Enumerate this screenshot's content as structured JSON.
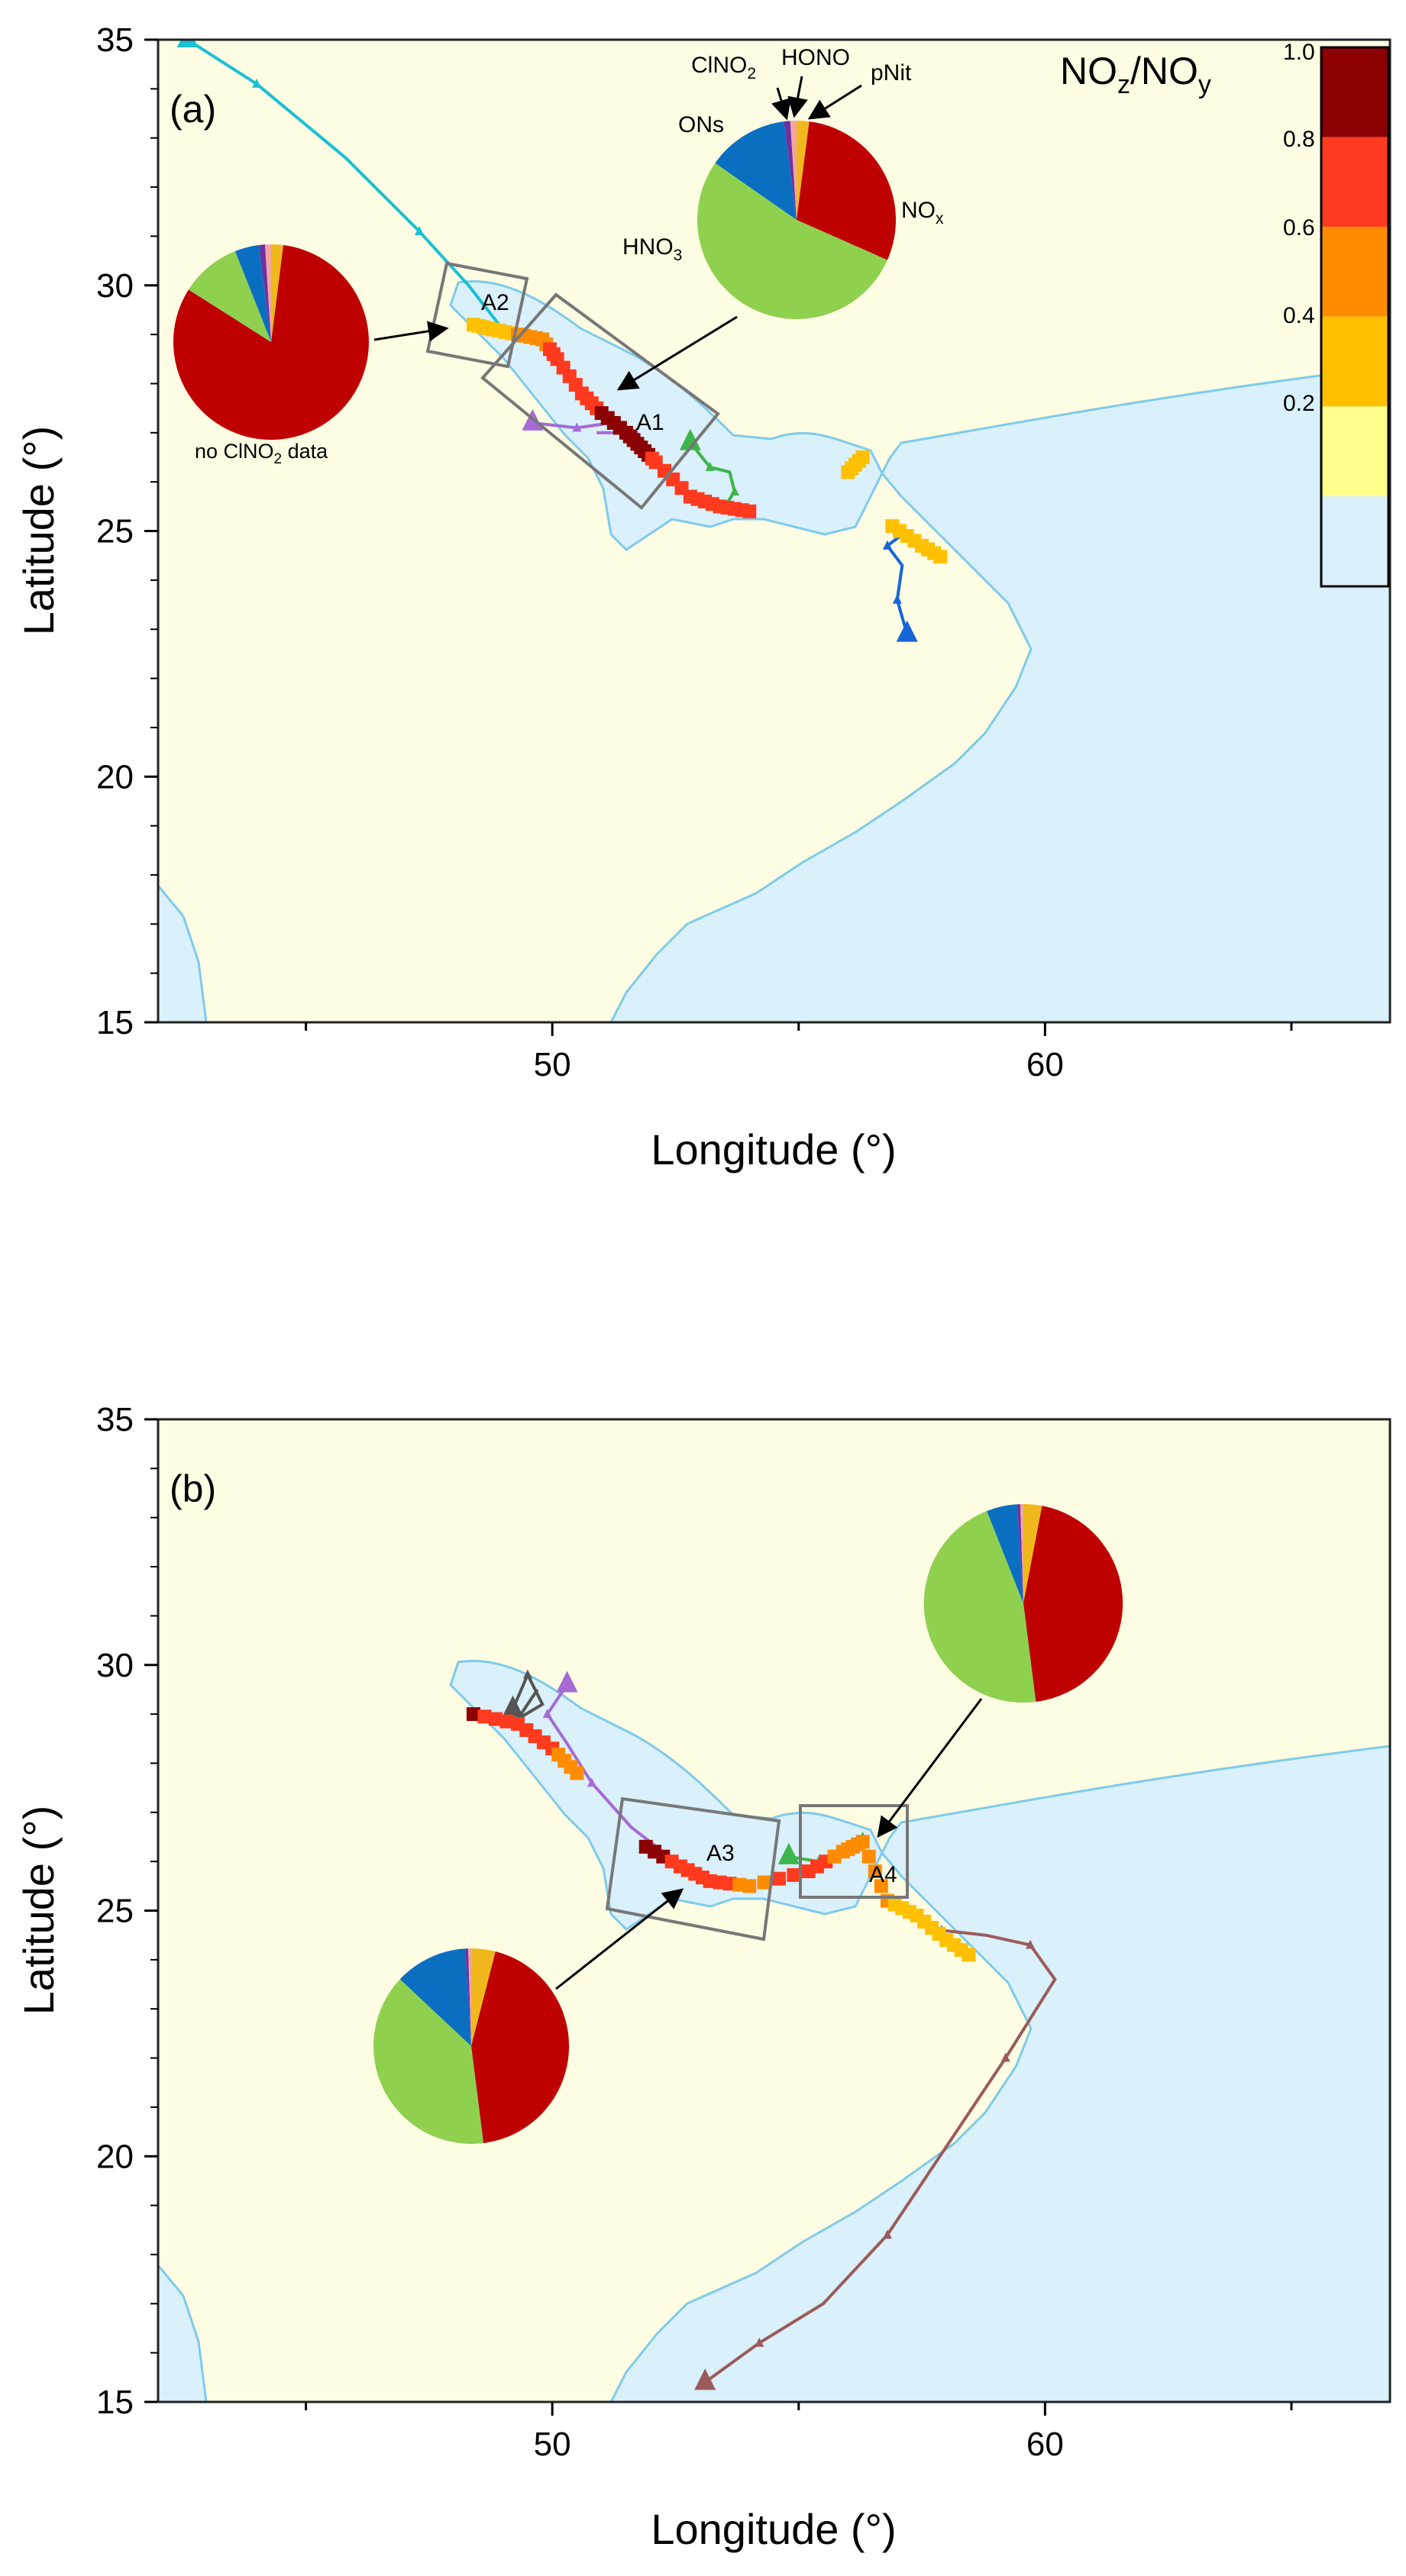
{
  "colors": {
    "land": "#fefde3",
    "sea": "#daf0fb",
    "coast": "#7ecbeb",
    "frame": "#222222",
    "box": "#777777",
    "pie": {
      "NOx": "#bf0000",
      "HNO3": "#8fd14f",
      "ONs": "#0b6fc1",
      "ClNO2": "#7030a0",
      "HONO": "#f1a59d",
      "pNit": "#f0b81c"
    },
    "colorbar": [
      "#daf0fb",
      "#ffff8c",
      "#ffc000",
      "#ff8c00",
      "#ff3a1f",
      "#8b0000"
    ],
    "tracks": {
      "cyan": "#19c0d4",
      "purple": "#a66bd3",
      "green": "#3cb54a",
      "blue": "#1565d8",
      "dark": "#555555",
      "brown": "#9b5b5b"
    }
  },
  "axis": {
    "x_label": "Longitude (°)",
    "y_label": "Latitude (°)",
    "x_ticks": [
      "50",
      "60"
    ],
    "y_ticks": [
      "15",
      "20",
      "25",
      "30",
      "35"
    ]
  },
  "colorbar": {
    "title_main": "NO",
    "title_sub1": "z",
    "title_slash": "/NO",
    "title_sub2": "y",
    "ticks": [
      "1.0",
      "0.8",
      "0.6",
      "0.4",
      "0.2"
    ]
  },
  "panel_a": {
    "label": "(a)",
    "box_A1": "A1",
    "box_A2": "A2",
    "pie_labels": {
      "ClNO2_main": "ClNO",
      "ClNO2_sub": "2",
      "HONO": "HONO",
      "pNit": "pNit",
      "ONs": "ONs",
      "NOx_main": "NO",
      "NOx_sub": "x",
      "HNO3_main": "HNO",
      "HNO3_sub": "3"
    },
    "no_data_main": "no ClNO",
    "no_data_sub": "2",
    "no_data_tail": " data"
  },
  "panel_b": {
    "label": "(b)",
    "box_A3": "A3",
    "box_A4": "A4"
  },
  "chart_data": {
    "type": "map",
    "lon_range": [
      42,
      67
    ],
    "lat_range": [
      15,
      35
    ],
    "colorbar_range": [
      0,
      1
    ],
    "pies": [
      {
        "panel": "a",
        "region": "A1",
        "slices": [
          {
            "name": "NOx",
            "value": 0.29
          },
          {
            "name": "HNO3",
            "value": 0.52
          },
          {
            "name": "ONs",
            "value": 0.13
          },
          {
            "name": "ClNO2",
            "value": 0.01
          },
          {
            "name": "HONO",
            "value": 0.01
          },
          {
            "name": "pNit",
            "value": 0.02
          }
        ]
      },
      {
        "panel": "a",
        "region": "A2",
        "slices": [
          {
            "name": "NOx",
            "value": 0.82
          },
          {
            "name": "HNO3",
            "value": 0.1
          },
          {
            "name": "ONs",
            "value": 0.04
          },
          {
            "name": "ClNO2",
            "value": 0.01
          },
          {
            "name": "HONO",
            "value": 0.01
          },
          {
            "name": "pNit",
            "value": 0.02
          }
        ]
      },
      {
        "panel": "b",
        "region": "A3",
        "slices": [
          {
            "name": "NOx",
            "value": 0.44
          },
          {
            "name": "HNO3",
            "value": 0.39
          },
          {
            "name": "ONs",
            "value": 0.12
          },
          {
            "name": "ClNO2",
            "value": 0.005
          },
          {
            "name": "HONO",
            "value": 0.005
          },
          {
            "name": "pNit",
            "value": 0.04
          }
        ]
      },
      {
        "panel": "b",
        "region": "A4",
        "slices": [
          {
            "name": "NOx",
            "value": 0.45
          },
          {
            "name": "HNO3",
            "value": 0.46
          },
          {
            "name": "ONs",
            "value": 0.05
          },
          {
            "name": "ClNO2",
            "value": 0.005
          },
          {
            "name": "HONO",
            "value": 0.005
          },
          {
            "name": "pNit",
            "value": 0.03
          }
        ]
      }
    ],
    "ship_track_a": [
      {
        "lon": 48.4,
        "lat": 29.2,
        "v": 0.2
      },
      {
        "lon": 48.8,
        "lat": 29.1,
        "v": 0.3
      },
      {
        "lon": 49.3,
        "lat": 29.0,
        "v": 0.4
      },
      {
        "lon": 49.8,
        "lat": 28.9,
        "v": 0.5
      },
      {
        "lon": 50.1,
        "lat": 28.5,
        "v": 0.7
      },
      {
        "lon": 50.6,
        "lat": 27.8,
        "v": 0.7
      },
      {
        "lon": 51.0,
        "lat": 27.4,
        "v": 0.8
      },
      {
        "lon": 51.5,
        "lat": 27.0,
        "v": 0.95
      },
      {
        "lon": 51.8,
        "lat": 26.7,
        "v": 0.9
      },
      {
        "lon": 52.1,
        "lat": 26.4,
        "v": 0.7
      },
      {
        "lon": 52.8,
        "lat": 25.7,
        "v": 0.7
      },
      {
        "lon": 53.4,
        "lat": 25.5,
        "v": 0.7
      },
      {
        "lon": 54.0,
        "lat": 25.4,
        "v": 0.7
      },
      {
        "lon": 56.0,
        "lat": 26.2,
        "v": 0.35
      },
      {
        "lon": 56.3,
        "lat": 26.5,
        "v": 0.3
      },
      {
        "lon": 56.9,
        "lat": 25.1,
        "v": 0.3
      },
      {
        "lon": 57.5,
        "lat": 24.7,
        "v": 0.25
      },
      {
        "lon": 58.0,
        "lat": 24.4,
        "v": 0.2
      }
    ],
    "ship_track_b": [
      {
        "lon": 48.4,
        "lat": 29.0,
        "v": 0.8
      },
      {
        "lon": 49.3,
        "lat": 28.8,
        "v": 0.6
      },
      {
        "lon": 50.0,
        "lat": 28.3,
        "v": 0.6
      },
      {
        "lon": 50.5,
        "lat": 27.8,
        "v": 0.5
      },
      {
        "lon": 51.9,
        "lat": 26.3,
        "v": 0.9
      },
      {
        "lon": 52.6,
        "lat": 25.9,
        "v": 0.7
      },
      {
        "lon": 53.2,
        "lat": 25.6,
        "v": 0.7
      },
      {
        "lon": 54.0,
        "lat": 25.5,
        "v": 0.5
      },
      {
        "lon": 55.2,
        "lat": 25.8,
        "v": 0.7
      },
      {
        "lon": 55.9,
        "lat": 26.2,
        "v": 0.5
      },
      {
        "lon": 56.3,
        "lat": 26.4,
        "v": 0.4
      },
      {
        "lon": 56.8,
        "lat": 25.2,
        "v": 0.4
      },
      {
        "lon": 57.4,
        "lat": 24.9,
        "v": 0.3
      },
      {
        "lon": 58.0,
        "lat": 24.4,
        "v": 0.25
      },
      {
        "lon": 58.6,
        "lat": 24.0,
        "v": 0.35
      }
    ]
  }
}
